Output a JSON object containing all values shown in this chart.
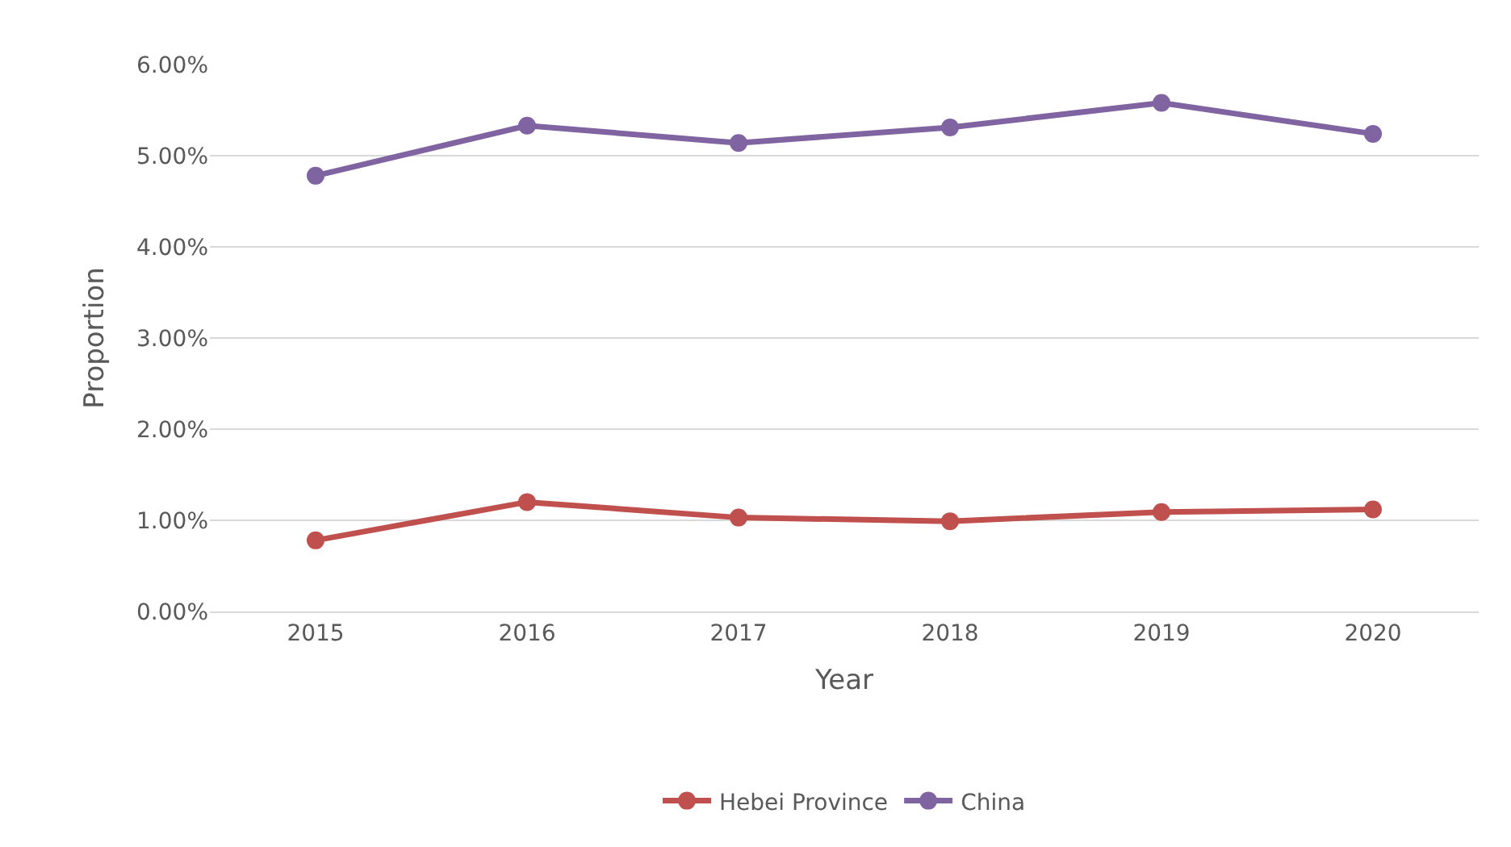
{
  "chart_data": {
    "type": "line",
    "xlabel": "Year",
    "ylabel": "Proportion",
    "categories": [
      "2015",
      "2016",
      "2017",
      "2018",
      "2019",
      "2020"
    ],
    "series": [
      {
        "name": "Hebei Province",
        "color": "#c0504d",
        "values": [
          0.78,
          1.2,
          1.03,
          0.99,
          1.09,
          1.12
        ]
      },
      {
        "name": "China",
        "color": "#8064a2",
        "values": [
          4.78,
          5.33,
          5.14,
          5.31,
          5.58,
          5.24
        ]
      }
    ],
    "ylim": [
      0,
      6
    ],
    "yticks": [
      {
        "value": 0,
        "label": "0.00%"
      },
      {
        "value": 1,
        "label": "1.00%"
      },
      {
        "value": 2,
        "label": "2.00%"
      },
      {
        "value": 3,
        "label": "3.00%"
      },
      {
        "value": 4,
        "label": "4.00%"
      },
      {
        "value": 5,
        "label": "5.00%"
      },
      {
        "value": 6,
        "label": "6.00%"
      }
    ],
    "grid": "y",
    "legend": "bottom",
    "marker": "circle",
    "line_style": "solid"
  }
}
